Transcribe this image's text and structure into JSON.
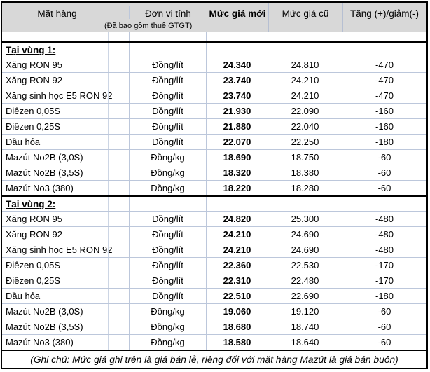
{
  "header": {
    "columns": [
      "Mặt hàng",
      "Đơn vị tính",
      "Mức giá mới",
      "Mức giá cũ",
      "Tăng (+)/giảm(-)"
    ],
    "subtitle": "(Đã bao gồm thuế GTGT)"
  },
  "sections": [
    {
      "title": "Tại vùng 1:",
      "rows": [
        {
          "item": "Xăng RON 95",
          "unit": "Đồng/lít",
          "new_price": "24.340",
          "old_price": "24.810",
          "change": "-470"
        },
        {
          "item": "Xăng RON 92",
          "unit": "Đồng/lít",
          "new_price": "23.740",
          "old_price": "24.210",
          "change": "-470"
        },
        {
          "item": "Xăng sinh học E5 RON 92",
          "unit": "Đồng/lít",
          "new_price": "23.740",
          "old_price": "24.210",
          "change": "-470"
        },
        {
          "item": "Điêzen 0,05S",
          "unit": "Đồng/lít",
          "new_price": "21.930",
          "old_price": "22.090",
          "change": "-160"
        },
        {
          "item": "Điêzen 0,25S",
          "unit": "Đồng/lít",
          "new_price": "21.880",
          "old_price": "22.040",
          "change": "-160"
        },
        {
          "item": "Dầu hỏa",
          "unit": "Đồng/lít",
          "new_price": "22.070",
          "old_price": "22.250",
          "change": "-180"
        },
        {
          "item": "Mazút No2B (3,0S)",
          "unit": "Đồng/kg",
          "new_price": "18.690",
          "old_price": "18.750",
          "change": "-60"
        },
        {
          "item": "Mazút No2B (3,5S)",
          "unit": "Đồng/kg",
          "new_price": "18.320",
          "old_price": "18.380",
          "change": "-60"
        },
        {
          "item": "Mazút No3 (380)",
          "unit": "Đồng/kg",
          "new_price": "18.220",
          "old_price": "18.280",
          "change": "-60"
        }
      ]
    },
    {
      "title": "Tại vùng 2:",
      "rows": [
        {
          "item": "Xăng RON 95",
          "unit": "Đồng/lít",
          "new_price": "24.820",
          "old_price": "25.300",
          "change": "-480"
        },
        {
          "item": "Xăng RON 92",
          "unit": "Đồng/lít",
          "new_price": "24.210",
          "old_price": "24.690",
          "change": "-480"
        },
        {
          "item": "Xăng sinh học E5 RON 92",
          "unit": "Đồng/lít",
          "new_price": "24.210",
          "old_price": "24.690",
          "change": "-480"
        },
        {
          "item": "Điêzen 0,05S",
          "unit": "Đồng/lít",
          "new_price": "22.360",
          "old_price": "22.530",
          "change": "-170"
        },
        {
          "item": "Điêzen 0,25S",
          "unit": "Đồng/lít",
          "new_price": "22.310",
          "old_price": "22.480",
          "change": "-170"
        },
        {
          "item": "Dầu hỏa",
          "unit": "Đồng/lít",
          "new_price": "22.510",
          "old_price": "22.690",
          "change": "-180"
        },
        {
          "item": "Mazút No2B (3,0S)",
          "unit": "Đồng/kg",
          "new_price": "19.060",
          "old_price": "19.120",
          "change": "-60"
        },
        {
          "item": "Mazút No2B (3,5S)",
          "unit": "Đồng/kg",
          "new_price": "18.680",
          "old_price": "18.740",
          "change": "-60"
        },
        {
          "item": "Mazút No3 (380)",
          "unit": "Đồng/kg",
          "new_price": "18.580",
          "old_price": "18.640",
          "change": "-60"
        }
      ]
    }
  ],
  "footer_note": "(Ghi chú: Mức giá ghi trên là giá bán lẻ, riêng đối với mặt hàng Mazút là giá bán buôn)",
  "colors": {
    "header_bg": "#d8d8d8",
    "gridline": "#bcc7db",
    "table_border": "#000000",
    "text": "#000000"
  }
}
